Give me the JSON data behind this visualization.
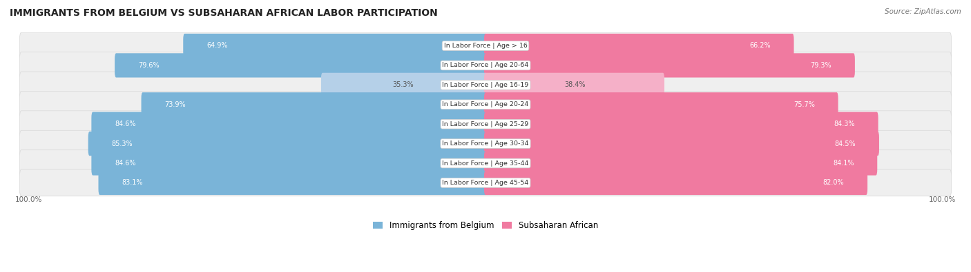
{
  "title": "IMMIGRANTS FROM BELGIUM VS SUBSAHARAN AFRICAN LABOR PARTICIPATION",
  "source": "Source: ZipAtlas.com",
  "categories": [
    "In Labor Force | Age > 16",
    "In Labor Force | Age 20-64",
    "In Labor Force | Age 16-19",
    "In Labor Force | Age 20-24",
    "In Labor Force | Age 25-29",
    "In Labor Force | Age 30-34",
    "In Labor Force | Age 35-44",
    "In Labor Force | Age 45-54"
  ],
  "belgium_values": [
    64.9,
    79.6,
    35.3,
    73.9,
    84.6,
    85.3,
    84.6,
    83.1
  ],
  "subsaharan_values": [
    66.2,
    79.3,
    38.4,
    75.7,
    84.3,
    84.5,
    84.1,
    82.0
  ],
  "belgium_color": "#7ab4d8",
  "belgium_color_light": "#b5d0e8",
  "subsaharan_color": "#f07aa0",
  "subsaharan_color_light": "#f5b0c8",
  "row_bg_color": "#efefef",
  "row_border_color": "#d8d8d8",
  "max_value": 100.0,
  "legend_label_belgium": "Immigrants from Belgium",
  "legend_label_subsaharan": "Subsaharan African"
}
